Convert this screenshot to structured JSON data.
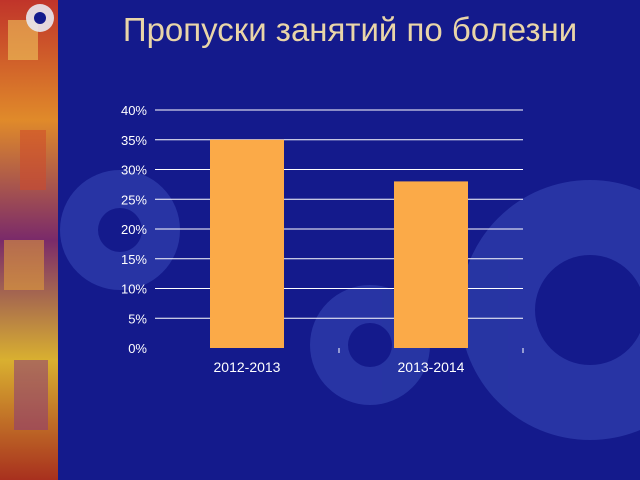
{
  "slide": {
    "title": "Пропуски занятий по болезни"
  },
  "colors": {
    "background": "#141a8c",
    "bar": "#fbaa48",
    "title": "#e9d5a8",
    "grid": "#ffffff"
  },
  "chart_data": {
    "type": "bar",
    "title": "",
    "xlabel": "",
    "ylabel": "",
    "categories": [
      "2012-2013",
      "2013-2014"
    ],
    "values": [
      35,
      28
    ],
    "value_unit": "%",
    "ylim": [
      0,
      40
    ],
    "yticks": [
      "0%",
      "5%",
      "10%",
      "15%",
      "20%",
      "25%",
      "30%",
      "35%",
      "40%"
    ],
    "grid": true,
    "legend": "none"
  }
}
